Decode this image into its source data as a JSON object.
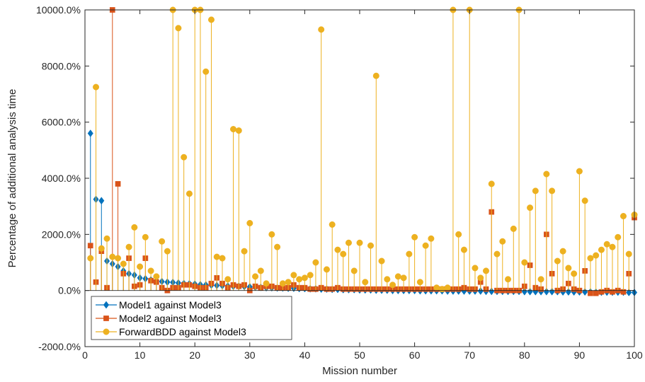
{
  "chart_data": {
    "type": "stem",
    "xlabel": "Mission number",
    "ylabel": "Percentage of additional analysis time",
    "xlim": [
      0,
      100
    ],
    "ylim": [
      -2000,
      10000
    ],
    "x_ticks": [
      0,
      10,
      20,
      30,
      40,
      50,
      60,
      70,
      80,
      90,
      100
    ],
    "y_ticks": [
      -2000,
      0,
      2000,
      4000,
      6000,
      8000,
      10000
    ],
    "y_tick_labels": [
      "-2000.0%",
      "0.0%",
      "2000.0%",
      "4000.0%",
      "6000.0%",
      "8000.0%",
      "10000.0%"
    ],
    "legend_position": "bottom-left",
    "series": [
      {
        "name": "Model1 against Model3",
        "color": "#0072BD",
        "marker": "diamond",
        "x": [
          1,
          2,
          3,
          4,
          5,
          6,
          7,
          8,
          9,
          10,
          11,
          12,
          13,
          14,
          15,
          16,
          17,
          18,
          19,
          20,
          21,
          22,
          23,
          24,
          25,
          26,
          27,
          28,
          29,
          30,
          31,
          32,
          33,
          34,
          35,
          36,
          37,
          38,
          39,
          40,
          41,
          42,
          43,
          44,
          45,
          46,
          47,
          48,
          49,
          50,
          51,
          52,
          53,
          54,
          55,
          56,
          57,
          58,
          59,
          60,
          61,
          62,
          63,
          64,
          65,
          66,
          67,
          68,
          69,
          70,
          71,
          72,
          73,
          74,
          75,
          76,
          77,
          78,
          79,
          80,
          81,
          82,
          83,
          84,
          85,
          86,
          87,
          88,
          89,
          90,
          91,
          92,
          93,
          94,
          95,
          96,
          97,
          98,
          99,
          100
        ],
        "values": [
          5600,
          3250,
          3200,
          1050,
          950,
          850,
          700,
          600,
          550,
          450,
          420,
          380,
          350,
          320,
          300,
          290,
          270,
          250,
          240,
          230,
          210,
          200,
          190,
          180,
          170,
          160,
          150,
          150,
          140,
          130,
          120,
          110,
          100,
          100,
          90,
          90,
          80,
          80,
          70,
          70,
          60,
          60,
          50,
          50,
          40,
          40,
          30,
          30,
          30,
          20,
          20,
          20,
          10,
          10,
          10,
          0,
          0,
          0,
          0,
          0,
          -10,
          -10,
          -10,
          -10,
          -10,
          -20,
          -20,
          -20,
          -20,
          -20,
          -20,
          -20,
          -30,
          -30,
          -30,
          -30,
          -30,
          -30,
          -30,
          -40,
          -40,
          -40,
          -40,
          -40,
          -40,
          -40,
          -50,
          -50,
          -50,
          -50,
          -50,
          -50,
          -60,
          -60,
          -60,
          -60,
          -60,
          -60,
          -70,
          -70
        ]
      },
      {
        "name": "Model2 against Model3",
        "color": "#D95319",
        "marker": "square",
        "x": [
          1,
          2,
          3,
          4,
          5,
          6,
          7,
          8,
          9,
          10,
          11,
          12,
          13,
          14,
          15,
          16,
          17,
          18,
          19,
          20,
          21,
          22,
          23,
          24,
          25,
          26,
          27,
          28,
          29,
          30,
          31,
          32,
          33,
          34,
          35,
          36,
          37,
          38,
          39,
          40,
          41,
          42,
          43,
          44,
          45,
          46,
          47,
          48,
          49,
          50,
          51,
          52,
          53,
          54,
          55,
          56,
          57,
          58,
          59,
          60,
          61,
          62,
          63,
          64,
          65,
          66,
          67,
          68,
          69,
          70,
          71,
          72,
          73,
          74,
          75,
          76,
          77,
          78,
          79,
          80,
          81,
          82,
          83,
          84,
          85,
          86,
          87,
          88,
          89,
          90,
          91,
          92,
          93,
          94,
          95,
          96,
          97,
          98,
          99,
          100
        ],
        "values": [
          1600,
          300,
          1400,
          100,
          10000,
          3800,
          600,
          1150,
          150,
          200,
          1150,
          350,
          300,
          100,
          0,
          100,
          100,
          200,
          200,
          150,
          100,
          100,
          250,
          450,
          250,
          100,
          200,
          150,
          200,
          0,
          150,
          100,
          150,
          150,
          100,
          100,
          100,
          200,
          100,
          100,
          50,
          50,
          100,
          50,
          50,
          100,
          50,
          50,
          50,
          50,
          50,
          50,
          50,
          50,
          50,
          50,
          50,
          50,
          50,
          50,
          50,
          50,
          50,
          50,
          50,
          50,
          50,
          50,
          100,
          50,
          50,
          300,
          50,
          2800,
          0,
          0,
          0,
          0,
          0,
          150,
          900,
          100,
          50,
          2000,
          600,
          0,
          50,
          250,
          50,
          0,
          700,
          -100,
          -100,
          -50,
          0,
          -50,
          0,
          -50,
          600,
          2600
        ]
      },
      {
        "name": "ForwardBDD against Model3",
        "color": "#EDB120",
        "marker": "circle",
        "x": [
          1,
          2,
          3,
          4,
          5,
          6,
          7,
          8,
          9,
          10,
          11,
          12,
          13,
          14,
          15,
          16,
          17,
          18,
          19,
          20,
          21,
          22,
          23,
          24,
          25,
          26,
          27,
          28,
          29,
          30,
          31,
          32,
          33,
          34,
          35,
          36,
          37,
          38,
          39,
          40,
          41,
          42,
          43,
          44,
          45,
          46,
          47,
          48,
          49,
          50,
          51,
          52,
          53,
          54,
          55,
          56,
          57,
          58,
          59,
          60,
          61,
          62,
          63,
          64,
          65,
          66,
          67,
          68,
          69,
          70,
          71,
          72,
          73,
          74,
          75,
          76,
          77,
          78,
          79,
          80,
          81,
          82,
          83,
          84,
          85,
          86,
          87,
          88,
          89,
          90,
          91,
          92,
          93,
          94,
          95,
          96,
          97,
          98,
          99,
          100
        ],
        "values": [
          1150,
          7250,
          1500,
          1850,
          1200,
          1150,
          950,
          1550,
          2250,
          850,
          1900,
          700,
          500,
          1750,
          1400,
          10000,
          9350,
          4750,
          3450,
          10000,
          10000,
          7800,
          9650,
          1200,
          1150,
          400,
          5750,
          5700,
          1400,
          2400,
          500,
          700,
          250,
          2000,
          1550,
          250,
          300,
          550,
          400,
          450,
          550,
          1000,
          9300,
          750,
          2350,
          1450,
          1300,
          1700,
          700,
          1700,
          300,
          1600,
          7650,
          1050,
          400,
          200,
          500,
          450,
          1300,
          1900,
          300,
          1600,
          1850,
          100,
          50,
          100,
          10000,
          2000,
          1450,
          10000,
          800,
          450,
          700,
          3800,
          1300,
          1750,
          400,
          2200,
          10000,
          1000,
          2950,
          3550,
          400,
          4150,
          3550,
          1050,
          1400,
          800,
          600,
          4250,
          3200,
          1150,
          1250,
          1450,
          1650,
          1550,
          1900,
          2650,
          1300,
          2700
        ]
      }
    ]
  }
}
